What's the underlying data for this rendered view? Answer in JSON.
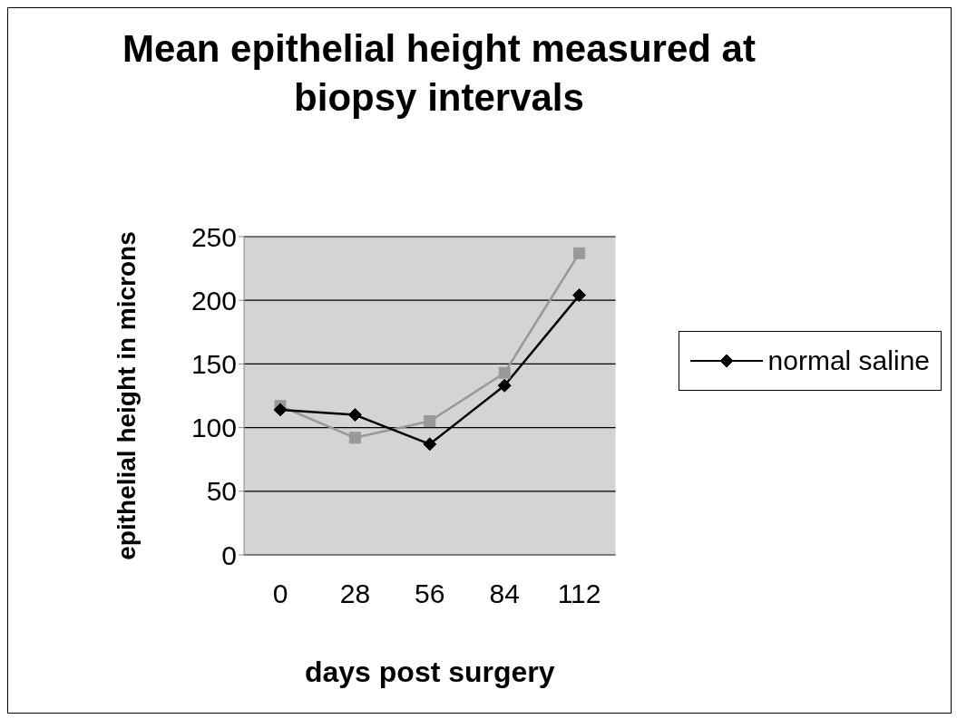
{
  "chart_data": {
    "type": "line",
    "title": "Mean epithelial height measured at biopsy intervals",
    "xlabel": "days post surgery",
    "ylabel": "epithelial height in microns",
    "categories": [
      "0",
      "28",
      "56",
      "84",
      "112"
    ],
    "series": [
      {
        "name": "normal saline",
        "color": "#000000",
        "marker": "diamond",
        "values": [
          114,
          110,
          87,
          133,
          204
        ]
      },
      {
        "color": "#999999",
        "marker": "square",
        "values": [
          117,
          92,
          105,
          143,
          237
        ]
      }
    ],
    "ylim": [
      0,
      250
    ],
    "yticks": [
      0,
      50,
      100,
      150,
      200,
      250
    ],
    "grid": "y",
    "legend": "right"
  }
}
